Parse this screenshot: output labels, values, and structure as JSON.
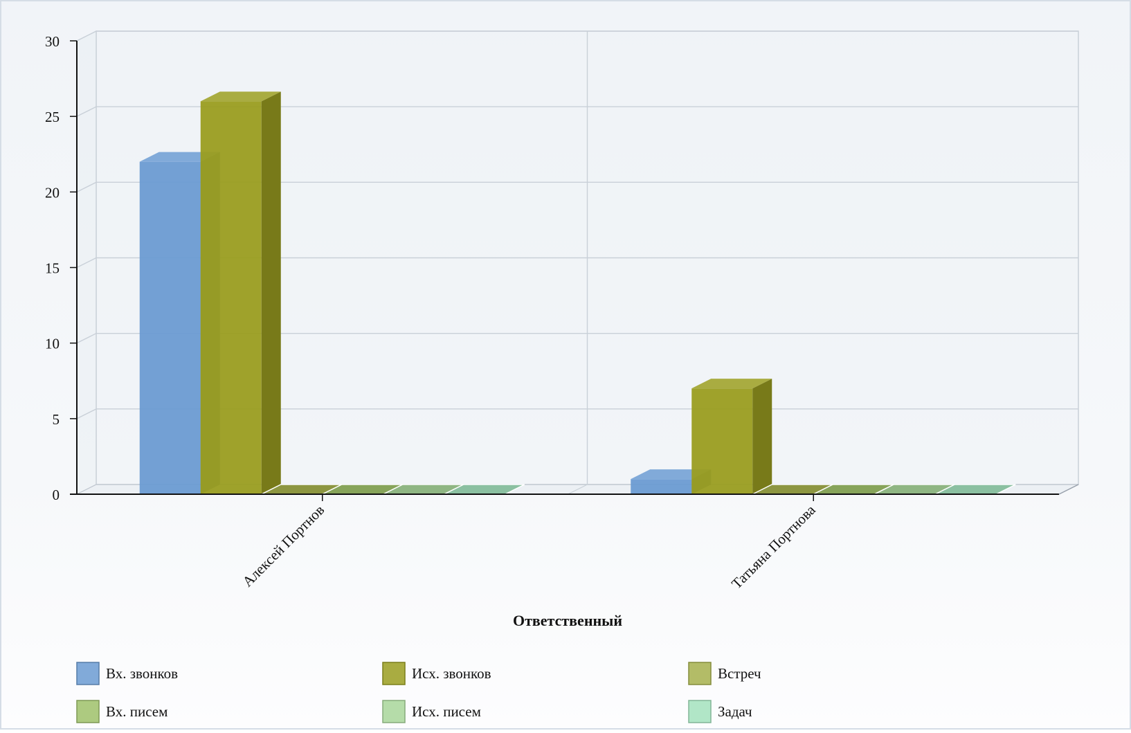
{
  "chart_data": {
    "type": "bar",
    "style": "3d-clustered-column",
    "categories": [
      "Алексей Портнов",
      "Татьяна Портнова"
    ],
    "series": [
      {
        "name": "Вх. звонков",
        "values": [
          22,
          1
        ],
        "color": "#6b9bd2"
      },
      {
        "name": "Исх. звонков",
        "values": [
          26,
          7
        ],
        "color": "#9a9d20"
      },
      {
        "name": "Встреч",
        "values": [
          0,
          0
        ],
        "color": "#a6b04c"
      },
      {
        "name": "Вх. писем",
        "values": [
          0,
          0
        ],
        "color": "#9fc16a"
      },
      {
        "name": "Исх. писем",
        "values": [
          0,
          0
        ],
        "color": "#a8d69a"
      },
      {
        "name": "Задач",
        "values": [
          0,
          0
        ],
        "color": "#a3e2bd"
      }
    ],
    "xlabel": "Ответственный",
    "ylabel": "",
    "ylim": [
      0,
      30
    ],
    "yticks": [
      0,
      5,
      10,
      15,
      20,
      25,
      30
    ],
    "grid": true,
    "legend_position": "bottom"
  }
}
